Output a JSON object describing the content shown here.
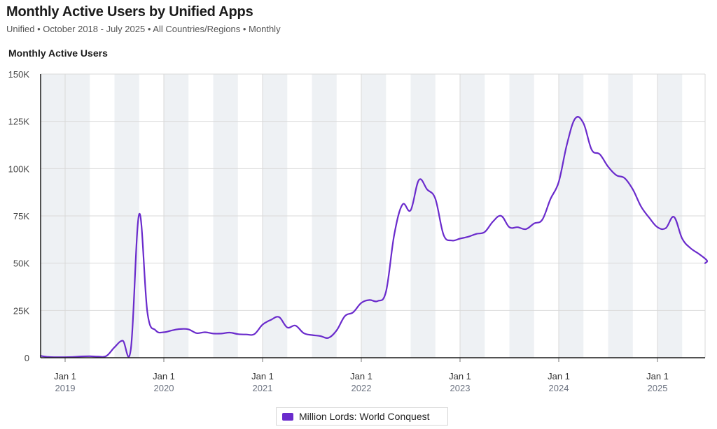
{
  "header": {
    "title": "Monthly Active Users by Unified Apps",
    "subtitle": "Unified • October 2018 - July 2025 • All Countries/Regions • Monthly",
    "chart_title": "Monthly Active Users"
  },
  "colors": {
    "series": "#6a2bcc",
    "band": "#eef1f4",
    "grid": "#d9d9d9",
    "axis_text": "#444444",
    "year_text": "#6b7280"
  },
  "chart_data": {
    "type": "line",
    "title": "Monthly Active Users",
    "xlabel": "",
    "ylabel": "",
    "x_range": [
      "2018-10",
      "2025-07"
    ],
    "ylim": [
      0,
      150000
    ],
    "y_ticks": [
      0,
      25000,
      50000,
      75000,
      100000,
      125000,
      150000
    ],
    "y_tick_labels": [
      "0",
      "25K",
      "50K",
      "75K",
      "100K",
      "125K",
      "150K"
    ],
    "x_ticks": [
      {
        "month_index": 3,
        "line1": "Jan 1",
        "line2": "2019"
      },
      {
        "month_index": 15,
        "line1": "Jan 1",
        "line2": "2020"
      },
      {
        "month_index": 27,
        "line1": "Jan 1",
        "line2": "2021"
      },
      {
        "month_index": 39,
        "line1": "Jan 1",
        "line2": "2022"
      },
      {
        "month_index": 51,
        "line1": "Jan 1",
        "line2": "2023"
      },
      {
        "month_index": 63,
        "line1": "Jan 1",
        "line2": "2024"
      },
      {
        "month_index": 75,
        "line1": "Jan 1",
        "line2": "2025"
      }
    ],
    "grid": true,
    "legend_position": "bottom-center",
    "series": [
      {
        "name": "Million Lords: World Conquest",
        "x_start": "2018-10",
        "values": [
          1000,
          400,
          300,
          300,
          400,
          700,
          800,
          600,
          900,
          5500,
          9000,
          5000,
          76000,
          24000,
          14500,
          13500,
          14500,
          15200,
          15000,
          13000,
          13500,
          12800,
          12800,
          13300,
          12500,
          12300,
          12500,
          17500,
          20000,
          21500,
          16000,
          17000,
          13000,
          12000,
          11500,
          10500,
          14500,
          22000,
          24000,
          29000,
          30500,
          30000,
          35000,
          65000,
          81000,
          78000,
          94000,
          89000,
          84000,
          65000,
          62000,
          63000,
          64000,
          65500,
          66500,
          72000,
          75000,
          69000,
          69000,
          68000,
          71000,
          73000,
          84000,
          93000,
          113000,
          126500,
          124000,
          110000,
          107500,
          101000,
          96500,
          95000,
          89000,
          80000,
          74000,
          69000,
          68500,
          74500,
          63000,
          58000,
          55000,
          51500
        ]
      }
    ]
  },
  "legend": {
    "label": "Million Lords: World Conquest"
  }
}
